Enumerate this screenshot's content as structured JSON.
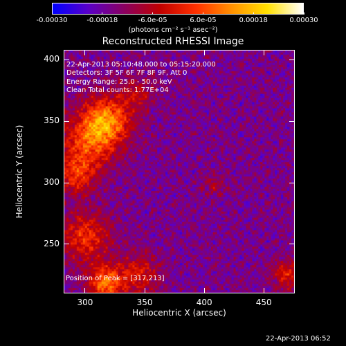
{
  "colorbar": {
    "tick_labels": [
      "-0.00030",
      "-0.00018",
      "-6.0e-05",
      "6.0e-05",
      "0.00018",
      "0.00030"
    ],
    "tick_values": [
      -0.0003,
      -0.00018,
      -6e-05,
      6e-05,
      0.00018,
      0.0003
    ],
    "range": [
      -0.0003,
      0.0003
    ],
    "unit_label": "(photons cm⁻² s⁻¹ asec⁻²)",
    "colors": [
      "#0000ff",
      "#5a00c8",
      "#8a0060",
      "#c00000",
      "#ff3000",
      "#ff9000",
      "#ffe000",
      "#ffffff"
    ]
  },
  "chart_data": {
    "type": "heatmap",
    "title": "Reconstructed RHESSI Image",
    "xlabel": "Heliocentric X (arcsec)",
    "ylabel": "Heliocentric Y (arcsec)",
    "xlim": [
      282,
      476
    ],
    "ylim": [
      210,
      408
    ],
    "x_ticks": [
      "300",
      "350",
      "400",
      "450"
    ],
    "x_tick_values": [
      300,
      350,
      400,
      450
    ],
    "y_ticks": [
      "250",
      "300",
      "350",
      "400"
    ],
    "y_tick_values": [
      250,
      300,
      350,
      400
    ],
    "annotations": [
      "22-Apr-2013 05:10:48.000 to 05:15:20.000",
      "Detectors: 3F 5F 6F 7F 8F 9F, Att 0",
      "Energy Range: 25.0 - 50.0 keV",
      "Clean     Total counts: 1.77E+04"
    ],
    "peak_label": "Position of Peak = [317,213]",
    "peak_position": [
      317,
      213
    ],
    "sources": [
      {
        "x": 317,
        "y": 350,
        "amplitude": 0.00028,
        "sigma": 14
      },
      {
        "x": 300,
        "y": 330,
        "amplitude": 0.00018,
        "sigma": 16
      },
      {
        "x": 292,
        "y": 305,
        "amplitude": 0.00016,
        "sigma": 10
      },
      {
        "x": 300,
        "y": 255,
        "amplitude": 0.00018,
        "sigma": 14
      },
      {
        "x": 317,
        "y": 218,
        "amplitude": 0.00026,
        "sigma": 10
      },
      {
        "x": 345,
        "y": 225,
        "amplitude": 0.00014,
        "sigma": 12
      },
      {
        "x": 470,
        "y": 225,
        "amplitude": 0.00016,
        "sigma": 8
      },
      {
        "x": 408,
        "y": 298,
        "amplitude": 8e-05,
        "sigma": 6
      },
      {
        "x": 343,
        "y": 372,
        "amplitude": 0.0001,
        "sigma": 10
      }
    ],
    "background_level": -0.00016,
    "noise_level": 5e-05
  },
  "footer": {
    "timestamp": "22-Apr-2013 06:52"
  }
}
